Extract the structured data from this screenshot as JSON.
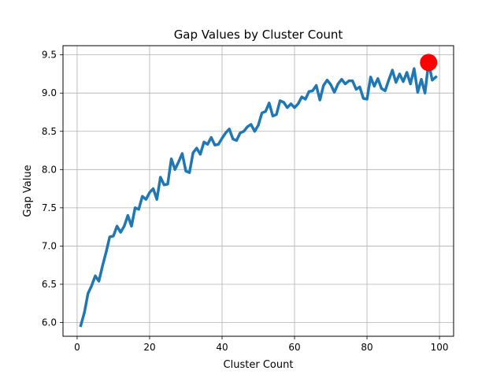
{
  "chart_data": {
    "type": "line",
    "title": "Gap Values by Cluster Count",
    "xlabel": "Cluster Count",
    "ylabel": "Gap Value",
    "xlim": [
      -3.9,
      103.9
    ],
    "ylim": [
      5.82,
      9.62
    ],
    "xticks": [
      0,
      20,
      40,
      60,
      80,
      100
    ],
    "yticks": [
      6.0,
      6.5,
      7.0,
      7.5,
      8.0,
      8.5,
      9.0,
      9.5
    ],
    "ytick_labels": [
      "6.0",
      "6.5",
      "7.0",
      "7.5",
      "8.0",
      "8.5",
      "9.0",
      "9.5"
    ],
    "grid": true,
    "line_color": "#1f77b4",
    "series": [
      {
        "x": [
          1,
          2,
          3,
          4,
          5,
          6,
          7,
          8,
          9,
          10,
          11,
          12,
          13,
          14,
          15,
          16,
          17,
          18,
          19,
          20,
          21,
          22,
          23,
          24,
          25,
          26,
          27,
          28,
          29,
          30,
          31,
          32,
          33,
          34,
          35,
          36,
          37,
          38,
          39,
          40,
          41,
          42,
          43,
          44,
          45,
          46,
          47,
          48,
          49,
          50,
          51,
          52,
          53,
          54,
          55,
          56,
          57,
          58,
          59,
          60,
          61,
          62,
          63,
          64,
          65,
          66,
          67,
          68,
          69,
          70,
          71,
          72,
          73,
          74,
          75,
          76,
          77,
          78,
          79,
          80,
          81,
          82,
          83,
          84,
          85,
          86,
          87,
          88,
          89,
          90,
          91,
          92,
          93,
          94,
          95,
          96,
          97,
          98,
          99
        ],
        "y": [
          5.96,
          6.13,
          6.38,
          6.48,
          6.61,
          6.54,
          6.74,
          6.92,
          7.12,
          7.13,
          7.26,
          7.18,
          7.26,
          7.4,
          7.26,
          7.5,
          7.48,
          7.65,
          7.61,
          7.7,
          7.75,
          7.61,
          7.9,
          7.8,
          7.81,
          8.14,
          8.0,
          8.1,
          8.21,
          7.98,
          7.96,
          8.22,
          8.28,
          8.2,
          8.36,
          8.33,
          8.42,
          8.32,
          8.33,
          8.41,
          8.48,
          8.53,
          8.4,
          8.38,
          8.48,
          8.5,
          8.56,
          8.59,
          8.5,
          8.58,
          8.74,
          8.76,
          8.87,
          8.7,
          8.72,
          8.9,
          8.88,
          8.81,
          8.86,
          8.81,
          8.86,
          8.95,
          8.92,
          9.02,
          9.03,
          9.1,
          8.91,
          9.1,
          9.17,
          9.11,
          9.01,
          9.12,
          9.18,
          9.12,
          9.16,
          9.16,
          9.05,
          9.08,
          8.93,
          8.92,
          9.21,
          9.09,
          9.19,
          9.06,
          9.03,
          9.17,
          9.3,
          9.14,
          9.25,
          9.15,
          9.27,
          9.12,
          9.32,
          9.01,
          9.18,
          9.0,
          9.4,
          9.17,
          9.21
        ]
      }
    ],
    "highlight": {
      "x": 97,
      "y": 9.4,
      "color": "#ff0000"
    }
  }
}
